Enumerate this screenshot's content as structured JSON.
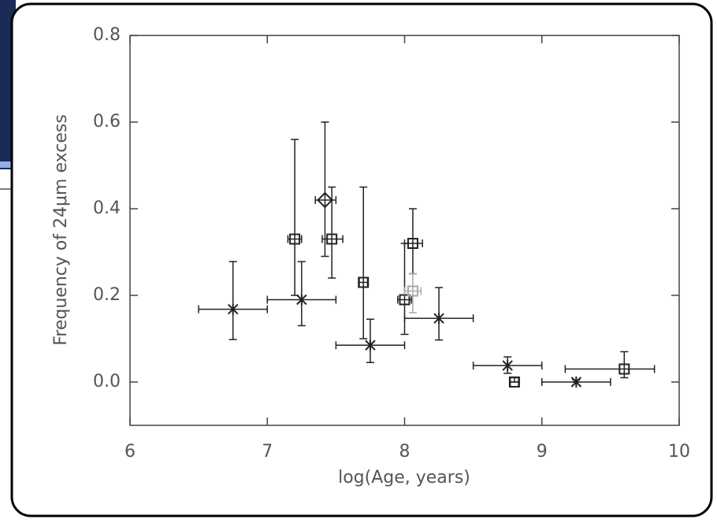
{
  "chart_data": {
    "type": "scatter",
    "xlabel": "log(Age, years)",
    "ylabel": "Frequency of 24μm excess",
    "xlim": [
      6,
      10
    ],
    "xticks": [
      6,
      7,
      8,
      9,
      10
    ],
    "ylim": [
      -0.1,
      0.8
    ],
    "yticks": [
      {
        "value": 0,
        "label": "0.0"
      },
      0.2,
      0.4,
      0.6,
      0.8
    ],
    "series": [
      {
        "marker": "asterisk",
        "color": "#222222",
        "x": [
          6.75,
          7.25,
          7.75,
          8.25,
          8.75,
          9.25
        ],
        "values": [
          0.168,
          0.19,
          0.085,
          0.147,
          0.038,
          0.0
        ],
        "x_low": [
          6.5,
          7.0,
          7.5,
          8.0,
          8.5,
          9.0
        ],
        "x_high": [
          7.0,
          7.5,
          8.0,
          8.5,
          9.0,
          9.5
        ],
        "y_low": [
          0.098,
          0.13,
          0.045,
          0.097,
          0.02,
          0.0
        ],
        "y_high": [
          0.278,
          0.278,
          0.145,
          0.218,
          0.058,
          0.005
        ]
      },
      {
        "marker": "square",
        "color": "#222222",
        "x": [
          7.2,
          7.47,
          7.7,
          8.0,
          8.06,
          8.8,
          9.6
        ],
        "values": [
          0.33,
          0.33,
          0.23,
          0.19,
          0.32,
          0.0,
          0.03
        ],
        "x_low": [
          7.15,
          7.4,
          7.67,
          7.95,
          8.0,
          8.77,
          9.17
        ],
        "x_high": [
          7.25,
          7.55,
          7.73,
          8.05,
          8.13,
          8.83,
          9.82
        ],
        "y_low": [
          0.2,
          0.24,
          0.1,
          0.11,
          0.25,
          0.0,
          0.01
        ],
        "y_high": [
          0.56,
          0.45,
          0.45,
          0.32,
          0.4,
          0.01,
          0.07
        ]
      },
      {
        "marker": "diamond",
        "color": "#222222",
        "x": [
          7.42
        ],
        "values": [
          0.42
        ],
        "x_low": [
          7.35
        ],
        "x_high": [
          7.5
        ],
        "y_low": [
          0.29
        ],
        "y_high": [
          0.6
        ]
      },
      {
        "marker": "square",
        "color": "#aaaaaa",
        "x": [
          8.06
        ],
        "values": [
          0.21
        ],
        "x_low": [
          8.0
        ],
        "x_high": [
          8.12
        ],
        "y_low": [
          0.16
        ],
        "y_high": [
          0.25
        ]
      }
    ]
  }
}
